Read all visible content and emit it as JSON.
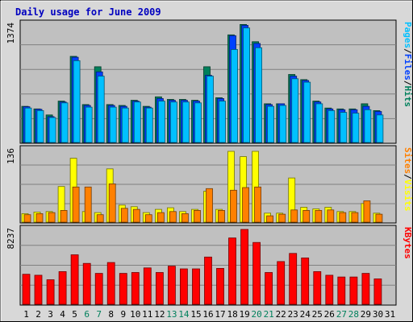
{
  "chart_data": {
    "type": "bar",
    "title": "Daily usage for June 2009",
    "categories": [
      "1",
      "2",
      "3",
      "4",
      "5",
      "6",
      "7",
      "8",
      "9",
      "10",
      "11",
      "12",
      "13",
      "14",
      "15",
      "16",
      "17",
      "18",
      "19",
      "20",
      "21",
      "22",
      "23",
      "24",
      "25",
      "26",
      "27",
      "28",
      "29",
      "30",
      "31"
    ],
    "weekend_days": [
      6,
      7,
      13,
      14,
      20,
      21,
      27,
      28
    ],
    "colors": {
      "hits": "#00805C",
      "files": "#0040FF",
      "pages": "#00C0FF",
      "visits": "#FFFF00",
      "sites": "#FF8000",
      "kbytes": "#FF0000",
      "title": "#0000C0",
      "weekday_label": "#000000",
      "weekend_label": "#00805C",
      "panel_bg": "#C0C0C0",
      "frame_bg": "#D8D8D8"
    },
    "panels": [
      {
        "id": "pages-files-hits",
        "ymax_label": "1374",
        "ymax": 1374,
        "legend": [
          {
            "text": "Pages",
            "color": "#00C0FF"
          },
          {
            "text": "/",
            "color": "#000000"
          },
          {
            "text": "Files",
            "color": "#0040FF"
          },
          {
            "text": "/",
            "color": "#000000"
          },
          {
            "text": "Hits",
            "color": "#00805C"
          }
        ],
        "series": [
          {
            "name": "Hits",
            "color": "#00805C",
            "values": [
              420,
              390,
              320,
              480,
              1000,
              440,
              880,
              440,
              430,
              490,
              420,
              530,
              500,
              500,
              490,
              880,
              520,
              1250,
              1370,
              1170,
              450,
              450,
              790,
              730,
              480,
              400,
              390,
              390,
              450,
              370,
              0
            ]
          },
          {
            "name": "Files",
            "color": "#0040FF",
            "values": [
              415,
              385,
              300,
              470,
              990,
              430,
              820,
              430,
              420,
              480,
              410,
              510,
              490,
              490,
              480,
              780,
              510,
              1240,
              1360,
              1150,
              440,
              450,
              770,
              720,
              470,
              390,
              380,
              380,
              420,
              360,
              0
            ]
          },
          {
            "name": "Pages",
            "color": "#00C0FF",
            "values": [
              400,
              370,
              290,
              460,
              950,
              410,
              770,
              410,
              400,
              470,
              400,
              480,
              470,
              470,
              460,
              770,
              480,
              1080,
              1330,
              1100,
              420,
              430,
              740,
              700,
              450,
              370,
              350,
              340,
              380,
              320,
              0
            ]
          }
        ]
      },
      {
        "id": "sites-visits",
        "ymax_label": "136",
        "ymax": 136,
        "legend": [
          {
            "text": "Sites",
            "color": "#FF8000"
          },
          {
            "text": "/",
            "color": "#000000"
          },
          {
            "text": "Visits",
            "color": "#FFFF00"
          }
        ],
        "series": [
          {
            "name": "Visits",
            "color": "#FFFF00",
            "values": [
              16,
              19,
              20,
              67,
              120,
              20,
              18,
              100,
              32,
              29,
              18,
              24,
              27,
              20,
              24,
              58,
              24,
              133,
              123,
              133,
              17,
              17,
              83,
              28,
              25,
              28,
              20,
              20,
              35,
              17,
              0
            ]
          },
          {
            "name": "Sites",
            "color": "#FF8000",
            "values": [
              14,
              16,
              18,
              22,
              66,
              66,
              14,
              72,
              26,
              24,
              14,
              18,
              20,
              16,
              22,
              63,
              22,
              60,
              65,
              66,
              12,
              15,
              23,
              22,
              22,
              23,
              18,
              18,
              40,
              15,
              0
            ]
          }
        ]
      },
      {
        "id": "kbytes",
        "ymax_label": "8237",
        "ymax": 8237,
        "legend": [
          {
            "text": "KBytes",
            "color": "#FF0000"
          }
        ],
        "series": [
          {
            "name": "KBytes",
            "color": "#FF0000",
            "values": [
              3300,
              3200,
              2700,
              3600,
              5450,
              4500,
              3400,
              4600,
              3400,
              3500,
              4000,
              3500,
              4200,
              3900,
              3900,
              5200,
              3950,
              7300,
              8237,
              6800,
              3500,
              4700,
              5600,
              5100,
              3600,
              3200,
              3000,
              3000,
              3400,
              2800,
              0
            ]
          }
        ]
      }
    ]
  }
}
